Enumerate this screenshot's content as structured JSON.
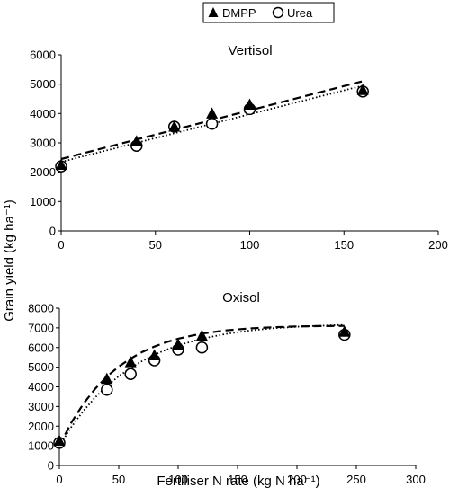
{
  "legend": {
    "items": [
      {
        "label": "DMPP",
        "marker": "filled-triangle"
      },
      {
        "label": "Urea",
        "marker": "open-circle"
      }
    ]
  },
  "shared_ylabel": "Grain yield (kg ha⁻¹)",
  "shared_xlabel": "Fertiliser N rate (kg N ha⁻¹)",
  "colors": {
    "marker": "#000000",
    "background": "#ffffff",
    "axis": "#000000"
  },
  "chart_data": [
    {
      "type": "scatter",
      "title": "Vertisol",
      "xlim": [
        0,
        200
      ],
      "ylim": [
        0,
        6000
      ],
      "xticks": [
        0,
        50,
        100,
        150,
        200
      ],
      "yticks": [
        0,
        1000,
        2000,
        3000,
        4000,
        5000,
        6000
      ],
      "series": [
        {
          "name": "DMPP",
          "marker": "filled-triangle",
          "x": [
            0,
            40,
            60,
            80,
            100,
            160
          ],
          "y": [
            2250,
            3050,
            3550,
            4000,
            4300,
            4800
          ]
        },
        {
          "name": "Urea",
          "marker": "open-circle",
          "x": [
            0,
            40,
            60,
            80,
            100,
            160
          ],
          "y": [
            2200,
            2900,
            3550,
            3650,
            4150,
            4750
          ]
        }
      ],
      "fits": [
        {
          "series": "DMPP",
          "style": "dashed",
          "model": "linear",
          "x": [
            0,
            160
          ],
          "y": [
            2450,
            5100
          ]
        },
        {
          "series": "Urea",
          "style": "dotted",
          "model": "linear",
          "x": [
            0,
            160
          ],
          "y": [
            2350,
            4950
          ]
        }
      ],
      "grid": false
    },
    {
      "type": "scatter",
      "title": "Oxisol",
      "xlim": [
        0,
        300
      ],
      "ylim": [
        0,
        8000
      ],
      "xticks": [
        0,
        50,
        100,
        150,
        200,
        250,
        300
      ],
      "yticks": [
        0,
        1000,
        2000,
        3000,
        4000,
        5000,
        6000,
        7000,
        8000
      ],
      "series": [
        {
          "name": "DMPP",
          "marker": "filled-triangle",
          "x": [
            0,
            40,
            60,
            80,
            100,
            120,
            240
          ],
          "y": [
            1250,
            4400,
            5250,
            5600,
            6150,
            6600,
            6800
          ]
        },
        {
          "name": "Urea",
          "marker": "open-circle",
          "x": [
            0,
            40,
            60,
            80,
            100,
            120,
            240
          ],
          "y": [
            1150,
            3850,
            4650,
            5350,
            5900,
            6000,
            6650
          ]
        }
      ],
      "fits": [
        {
          "series": "DMPP",
          "style": "dashed",
          "model": "exponential-plateau",
          "x": [
            0,
            10,
            20,
            30,
            40,
            50,
            60,
            70,
            80,
            90,
            100,
            120,
            140,
            160,
            180,
            200,
            220,
            240
          ],
          "y": [
            1000,
            2170,
            3120,
            3890,
            4520,
            5030,
            5440,
            5780,
            6050,
            6270,
            6450,
            6710,
            6870,
            6970,
            7030,
            7070,
            7090,
            7100
          ]
        },
        {
          "series": "Urea",
          "style": "dotted",
          "model": "exponential-plateau",
          "x": [
            0,
            10,
            20,
            30,
            40,
            50,
            60,
            70,
            80,
            90,
            100,
            120,
            140,
            160,
            180,
            200,
            220,
            240
          ],
          "y": [
            1000,
            1950,
            2760,
            3450,
            4040,
            4540,
            4960,
            5320,
            5630,
            5890,
            6110,
            6450,
            6690,
            6860,
            6980,
            7060,
            7110,
            7150
          ]
        }
      ],
      "grid": false
    }
  ]
}
